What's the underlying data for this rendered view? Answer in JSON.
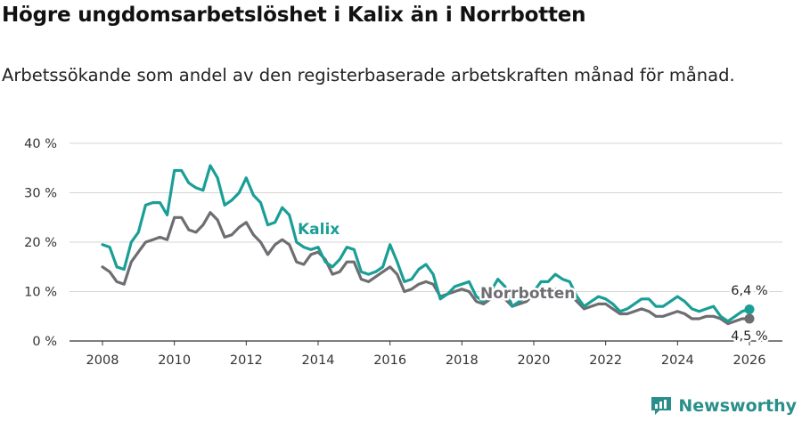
{
  "title": "Högre ungdomsarbetslöshet i Kalix än i Norrbotten",
  "subtitle": "Arbetssökande som andel av den registerbaserade arbetskraften månad för månad.",
  "brand": "Newsworthy",
  "colors": {
    "kalix": "#1a9e96",
    "norrbotten": "#6e6e72",
    "grid": "#d6d6d6",
    "axis": "#333333",
    "brand": "#2a8f8a"
  },
  "chart_data": {
    "type": "line",
    "title": "Högre ungdomsarbetslöshet i Kalix än i Norrbotten",
    "ylabel": "",
    "xlabel": "",
    "ylim": [
      0,
      40
    ],
    "xlim": [
      2007.2,
      2026.5
    ],
    "y_ticks": [
      0,
      10,
      20,
      30,
      40
    ],
    "y_tick_labels": [
      "0 %",
      "10 %",
      "20 %",
      "30 %",
      "40 %"
    ],
    "x_ticks": [
      2008,
      2010,
      2012,
      2014,
      2016,
      2018,
      2020,
      2022,
      2024,
      2026
    ],
    "x_tick_labels": [
      "2008",
      "2010",
      "2012",
      "2014",
      "2016",
      "2018",
      "2020",
      "2022",
      "2024",
      "2026"
    ],
    "series": [
      {
        "name": "Kalix",
        "label": "Kalix",
        "end_label": "6,4 %",
        "points": [
          [
            2008.0,
            19.5
          ],
          [
            2008.2,
            19.0
          ],
          [
            2008.4,
            15.0
          ],
          [
            2008.6,
            14.5
          ],
          [
            2008.8,
            20.0
          ],
          [
            2009.0,
            22.0
          ],
          [
            2009.2,
            27.5
          ],
          [
            2009.4,
            28.0
          ],
          [
            2009.6,
            28.0
          ],
          [
            2009.8,
            25.5
          ],
          [
            2010.0,
            34.5
          ],
          [
            2010.2,
            34.5
          ],
          [
            2010.4,
            32.0
          ],
          [
            2010.6,
            31.0
          ],
          [
            2010.8,
            30.5
          ],
          [
            2011.0,
            35.5
          ],
          [
            2011.2,
            33.0
          ],
          [
            2011.4,
            27.5
          ],
          [
            2011.6,
            28.5
          ],
          [
            2011.8,
            30.0
          ],
          [
            2012.0,
            33.0
          ],
          [
            2012.2,
            29.5
          ],
          [
            2012.4,
            28.0
          ],
          [
            2012.6,
            23.5
          ],
          [
            2012.8,
            24.0
          ],
          [
            2013.0,
            27.0
          ],
          [
            2013.2,
            25.5
          ],
          [
            2013.4,
            20.0
          ],
          [
            2013.6,
            19.0
          ],
          [
            2013.8,
            18.5
          ],
          [
            2014.0,
            19.0
          ],
          [
            2014.2,
            16.0
          ],
          [
            2014.4,
            15.0
          ],
          [
            2014.6,
            16.5
          ],
          [
            2014.8,
            19.0
          ],
          [
            2015.0,
            18.5
          ],
          [
            2015.2,
            14.0
          ],
          [
            2015.4,
            13.5
          ],
          [
            2015.6,
            14.0
          ],
          [
            2015.8,
            15.0
          ],
          [
            2016.0,
            19.5
          ],
          [
            2016.2,
            16.0
          ],
          [
            2016.4,
            12.0
          ],
          [
            2016.6,
            12.5
          ],
          [
            2016.8,
            14.5
          ],
          [
            2017.0,
            15.5
          ],
          [
            2017.2,
            13.5
          ],
          [
            2017.4,
            8.5
          ],
          [
            2017.6,
            9.5
          ],
          [
            2017.8,
            11.0
          ],
          [
            2018.0,
            11.5
          ],
          [
            2018.2,
            12.0
          ],
          [
            2018.4,
            9.0
          ],
          [
            2018.6,
            8.0
          ],
          [
            2018.8,
            10.0
          ],
          [
            2019.0,
            12.5
          ],
          [
            2019.2,
            11.0
          ],
          [
            2019.4,
            7.0
          ],
          [
            2019.6,
            8.0
          ],
          [
            2019.8,
            9.0
          ],
          [
            2020.0,
            10.0
          ],
          [
            2020.2,
            12.0
          ],
          [
            2020.4,
            12.0
          ],
          [
            2020.6,
            13.5
          ],
          [
            2020.8,
            12.5
          ],
          [
            2021.0,
            12.0
          ],
          [
            2021.2,
            9.0
          ],
          [
            2021.4,
            7.0
          ],
          [
            2021.6,
            8.0
          ],
          [
            2021.8,
            9.0
          ],
          [
            2022.0,
            8.5
          ],
          [
            2022.2,
            7.5
          ],
          [
            2022.4,
            6.0
          ],
          [
            2022.6,
            6.5
          ],
          [
            2022.8,
            7.5
          ],
          [
            2023.0,
            8.5
          ],
          [
            2023.2,
            8.5
          ],
          [
            2023.4,
            7.0
          ],
          [
            2023.6,
            7.0
          ],
          [
            2023.8,
            8.0
          ],
          [
            2024.0,
            9.0
          ],
          [
            2024.2,
            8.0
          ],
          [
            2024.4,
            6.5
          ],
          [
            2024.6,
            6.0
          ],
          [
            2024.8,
            6.5
          ],
          [
            2025.0,
            7.0
          ],
          [
            2025.2,
            5.0
          ],
          [
            2025.4,
            4.0
          ],
          [
            2025.6,
            5.0
          ],
          [
            2025.8,
            6.0
          ],
          [
            2026.0,
            6.4
          ]
        ]
      },
      {
        "name": "Norrbotten",
        "label": "Norrbotten",
        "end_label": "4,5 %",
        "points": [
          [
            2008.0,
            15.0
          ],
          [
            2008.2,
            14.0
          ],
          [
            2008.4,
            12.0
          ],
          [
            2008.6,
            11.5
          ],
          [
            2008.8,
            16.0
          ],
          [
            2009.0,
            18.0
          ],
          [
            2009.2,
            20.0
          ],
          [
            2009.4,
            20.5
          ],
          [
            2009.6,
            21.0
          ],
          [
            2009.8,
            20.5
          ],
          [
            2010.0,
            25.0
          ],
          [
            2010.2,
            25.0
          ],
          [
            2010.4,
            22.5
          ],
          [
            2010.6,
            22.0
          ],
          [
            2010.8,
            23.5
          ],
          [
            2011.0,
            26.0
          ],
          [
            2011.2,
            24.5
          ],
          [
            2011.4,
            21.0
          ],
          [
            2011.6,
            21.5
          ],
          [
            2011.8,
            23.0
          ],
          [
            2012.0,
            24.0
          ],
          [
            2012.2,
            21.5
          ],
          [
            2012.4,
            20.0
          ],
          [
            2012.6,
            17.5
          ],
          [
            2012.8,
            19.5
          ],
          [
            2013.0,
            20.5
          ],
          [
            2013.2,
            19.5
          ],
          [
            2013.4,
            16.0
          ],
          [
            2013.6,
            15.5
          ],
          [
            2013.8,
            17.5
          ],
          [
            2014.0,
            18.0
          ],
          [
            2014.2,
            16.5
          ],
          [
            2014.4,
            13.5
          ],
          [
            2014.6,
            14.0
          ],
          [
            2014.8,
            16.0
          ],
          [
            2015.0,
            16.0
          ],
          [
            2015.2,
            12.5
          ],
          [
            2015.4,
            12.0
          ],
          [
            2015.6,
            13.0
          ],
          [
            2015.8,
            14.0
          ],
          [
            2016.0,
            15.0
          ],
          [
            2016.2,
            13.5
          ],
          [
            2016.4,
            10.0
          ],
          [
            2016.6,
            10.5
          ],
          [
            2016.8,
            11.5
          ],
          [
            2017.0,
            12.0
          ],
          [
            2017.2,
            11.5
          ],
          [
            2017.4,
            9.0
          ],
          [
            2017.6,
            9.5
          ],
          [
            2017.8,
            10.0
          ],
          [
            2018.0,
            10.5
          ],
          [
            2018.2,
            10.0
          ],
          [
            2018.4,
            8.0
          ],
          [
            2018.6,
            7.5
          ],
          [
            2018.8,
            8.5
          ],
          [
            2019.0,
            9.0
          ],
          [
            2019.2,
            8.5
          ],
          [
            2019.4,
            7.0
          ],
          [
            2019.6,
            7.5
          ],
          [
            2019.8,
            8.0
          ],
          [
            2020.0,
            9.5
          ],
          [
            2020.2,
            10.0
          ],
          [
            2020.4,
            10.0
          ],
          [
            2020.6,
            10.5
          ],
          [
            2020.8,
            10.0
          ],
          [
            2021.0,
            9.5
          ],
          [
            2021.2,
            8.0
          ],
          [
            2021.4,
            6.5
          ],
          [
            2021.6,
            7.0
          ],
          [
            2021.8,
            7.5
          ],
          [
            2022.0,
            7.5
          ],
          [
            2022.2,
            6.5
          ],
          [
            2022.4,
            5.5
          ],
          [
            2022.6,
            5.5
          ],
          [
            2022.8,
            6.0
          ],
          [
            2023.0,
            6.5
          ],
          [
            2023.2,
            6.0
          ],
          [
            2023.4,
            5.0
          ],
          [
            2023.6,
            5.0
          ],
          [
            2023.8,
            5.5
          ],
          [
            2024.0,
            6.0
          ],
          [
            2024.2,
            5.5
          ],
          [
            2024.4,
            4.5
          ],
          [
            2024.6,
            4.5
          ],
          [
            2024.8,
            5.0
          ],
          [
            2025.0,
            5.0
          ],
          [
            2025.2,
            4.5
          ],
          [
            2025.4,
            3.5
          ],
          [
            2025.6,
            4.0
          ],
          [
            2025.8,
            4.5
          ],
          [
            2026.0,
            4.5
          ]
        ]
      }
    ],
    "legend": "inline labels"
  }
}
